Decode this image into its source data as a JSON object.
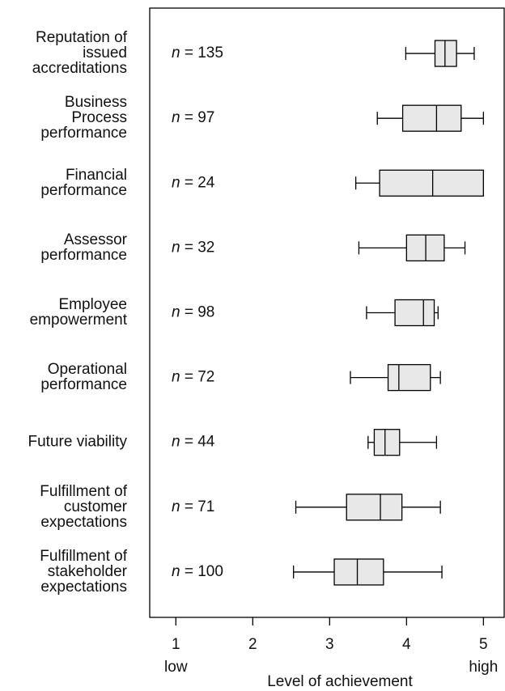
{
  "chart_data": {
    "type": "boxplot",
    "orientation": "horizontal",
    "x_label": "Level of achievement",
    "x_end_labels": [
      "low",
      "high"
    ],
    "categories": [
      [
        "Reputation of",
        "issued",
        "accreditations"
      ],
      [
        "Business",
        "Process",
        "performance"
      ],
      [
        "Financial",
        "performance"
      ],
      [
        "Assessor",
        "performance"
      ],
      [
        "Employee",
        "empowerment"
      ],
      [
        "Operational",
        "performance"
      ],
      [
        "Future viability"
      ],
      [
        "Fulfillment of",
        "customer",
        "expectations"
      ],
      [
        "Fulfillment of",
        "stakeholder",
        "expectations"
      ]
    ],
    "annotations": [
      "n = 135",
      "n = 97",
      "n = 24",
      "n = 32",
      "n = 98",
      "n = 72",
      "n = 44",
      "n = 71",
      "n = 100"
    ],
    "boxes": [
      {
        "min": 3.99,
        "q1": 4.37,
        "median": 4.5,
        "q3": 4.65,
        "max": 4.88
      },
      {
        "min": 3.62,
        "q1": 3.95,
        "median": 4.39,
        "q3": 4.71,
        "max": 5.0
      },
      {
        "min": 3.34,
        "q1": 3.65,
        "median": 4.34,
        "q3": 5.0,
        "max": 5.0
      },
      {
        "min": 3.38,
        "q1": 4.0,
        "median": 4.25,
        "q3": 4.49,
        "max": 4.76
      },
      {
        "min": 3.48,
        "q1": 3.85,
        "median": 4.22,
        "q3": 4.36,
        "max": 4.41
      },
      {
        "min": 3.27,
        "q1": 3.76,
        "median": 3.9,
        "q3": 4.31,
        "max": 4.44
      },
      {
        "min": 3.5,
        "q1": 3.58,
        "median": 3.72,
        "q3": 3.91,
        "max": 4.39
      },
      {
        "min": 2.56,
        "q1": 3.22,
        "median": 3.66,
        "q3": 3.94,
        "max": 4.44
      },
      {
        "min": 2.53,
        "q1": 3.06,
        "median": 3.36,
        "q3": 3.7,
        "max": 4.46
      }
    ],
    "box_color": "#e8e8e8",
    "xlim": [
      0.66,
      5.27
    ],
    "xticks": [
      1,
      2,
      3,
      4,
      5
    ]
  }
}
